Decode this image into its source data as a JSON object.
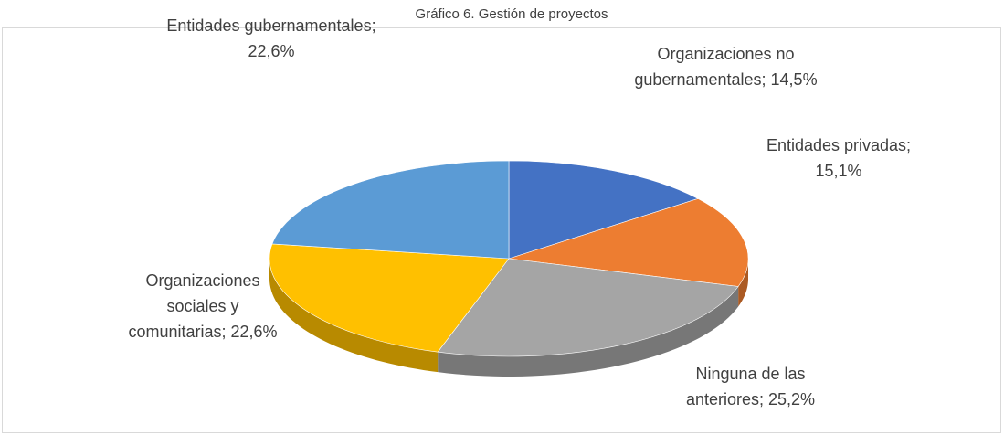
{
  "chart_data": {
    "type": "pie",
    "title": "Gráfico 6. Gestión de proyectos",
    "categories": [
      "Organizaciones no gubernamentales;",
      "Entidades privadas;",
      "Ninguna de las anteriores;",
      "Organizaciones sociales y comunitarias;",
      "Entidades gubernamentales;"
    ],
    "values": [
      14.5,
      15.1,
      25.2,
      22.6,
      22.6
    ],
    "value_labels": [
      "14,5%",
      "15,1%",
      "25,2%",
      "22,6%",
      "22,6%"
    ],
    "colors": [
      "#4472c4",
      "#ed7d31",
      "#a5a5a5",
      "#ffc000",
      "#5b9bd5"
    ]
  }
}
